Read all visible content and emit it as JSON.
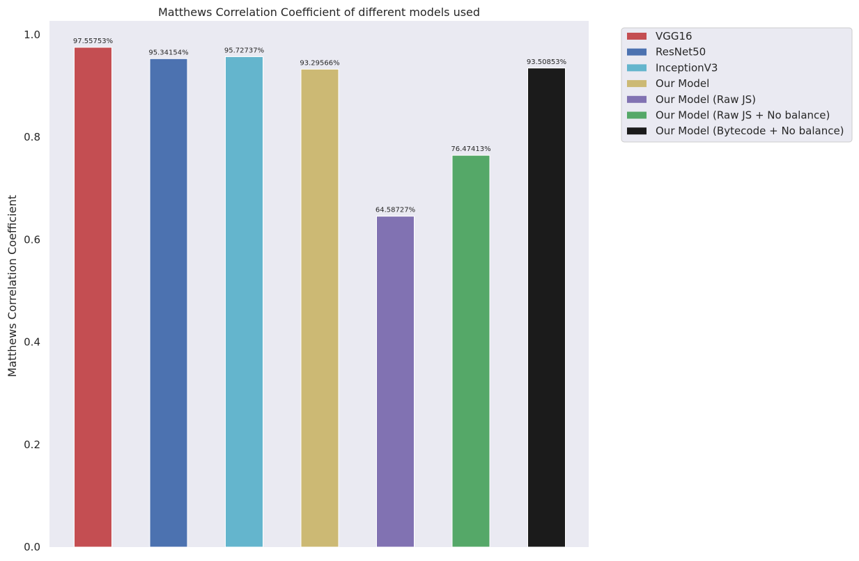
{
  "chart_data": {
    "type": "bar",
    "title": "Matthews Correlation Coefficient of different models used",
    "xlabel": "",
    "ylabel": "Matthews Correlation Coefficient",
    "ylim": [
      0,
      1.0
    ],
    "yticks": [
      0.0,
      0.2,
      0.4,
      0.6,
      0.8,
      1.0
    ],
    "ytick_labels": [
      "0.0",
      "0.2",
      "0.4",
      "0.6",
      "0.8",
      "1.0"
    ],
    "grid": false,
    "legend_position": "outside-top-right",
    "background_color": "#eaeaf2",
    "categories": [
      "VGG16",
      "ResNet50",
      "InceptionV3",
      "Our Model",
      "Our Model (Raw JS)",
      "Our Model (Raw JS + No balance)",
      "Our Model (Bytecode + No balance)"
    ],
    "values": [
      0.9755753,
      0.9534154,
      0.9572737,
      0.9329566,
      0.6458727,
      0.7647413,
      0.9350853
    ],
    "data_labels": [
      "97.55753%",
      "95.34154%",
      "95.72737%",
      "93.29566%",
      "64.58727%",
      "76.47413%",
      "93.50853%"
    ],
    "colors": [
      "#c44e52",
      "#4c72b0",
      "#64b5cd",
      "#ccb974",
      "#8172b2",
      "#55a868",
      "#1b1b1b"
    ],
    "legend": [
      "VGG16",
      "ResNet50",
      "InceptionV3",
      "Our Model",
      "Our Model (Raw JS)",
      "Our Model (Raw JS + No balance)",
      "Our Model (Bytecode + No balance)"
    ]
  }
}
